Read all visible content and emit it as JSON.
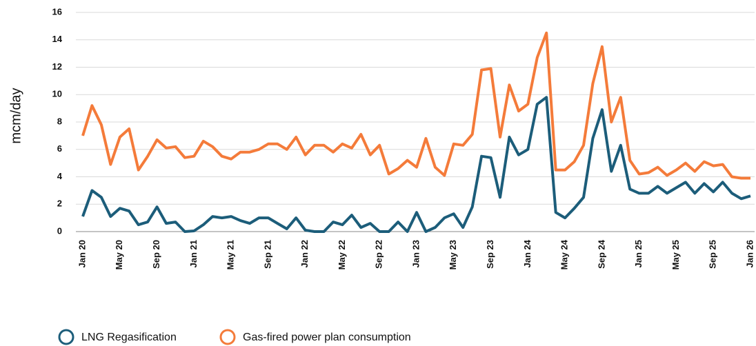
{
  "chart_data": {
    "type": "line",
    "y_label": "mcm/day",
    "categories": [
      "Jan 20",
      null,
      null,
      null,
      "May 20",
      null,
      null,
      null,
      "Sep 20",
      null,
      null,
      null,
      "Jan 21",
      null,
      null,
      null,
      "May 21",
      null,
      null,
      null,
      "Sep 21",
      null,
      null,
      null,
      "Jan 22",
      null,
      null,
      null,
      "May 22",
      null,
      null,
      null,
      "Sep 22",
      null,
      null,
      null,
      "Jan 23",
      null,
      null,
      null,
      "May 23",
      null,
      null,
      null,
      "Sep 23",
      null,
      null,
      null,
      "Jan 24",
      null,
      null,
      null,
      "May 24",
      null,
      null,
      null,
      "Sep 24",
      null,
      null,
      null,
      "Jan 25",
      null,
      null,
      null,
      "May 25",
      null,
      null,
      null,
      "Sep 25",
      null,
      null,
      null,
      "Jan 26"
    ],
    "series": [
      {
        "name": "LNG Regasification",
        "color": "#1c5d7a",
        "values": [
          1.1,
          3.0,
          2.5,
          1.1,
          1.7,
          1.5,
          0.5,
          0.7,
          1.8,
          0.6,
          0.7,
          0.0,
          0.05,
          0.5,
          1.1,
          1.0,
          1.1,
          0.8,
          0.6,
          1.0,
          1.0,
          0.6,
          0.2,
          1.0,
          0.1,
          0.0,
          0.0,
          0.7,
          0.5,
          1.2,
          0.3,
          0.6,
          0.0,
          0.0,
          0.7,
          0.0,
          1.4,
          0.0,
          0.3,
          1.0,
          1.3,
          0.3,
          1.8,
          5.5,
          5.4,
          2.5,
          6.9,
          5.6,
          6.0,
          9.3,
          9.8,
          1.4,
          1.0,
          1.7,
          2.5,
          6.8,
          8.9,
          4.4,
          6.3,
          3.1,
          2.8,
          2.8,
          3.3,
          2.8,
          3.2,
          3.6,
          2.8,
          3.5,
          2.9,
          3.6,
          2.8,
          2.4,
          2.6
        ]
      },
      {
        "name": "Gas-fired power plan consumption",
        "color": "#f47b3a",
        "values": [
          7.0,
          9.2,
          7.8,
          4.9,
          6.9,
          7.5,
          4.5,
          5.5,
          6.7,
          6.1,
          6.2,
          5.4,
          5.5,
          6.6,
          6.2,
          5.5,
          5.3,
          5.8,
          5.8,
          6.0,
          6.4,
          6.4,
          6.0,
          6.9,
          5.6,
          6.3,
          6.3,
          5.8,
          6.4,
          6.1,
          7.1,
          5.6,
          6.3,
          4.2,
          4.6,
          5.2,
          4.7,
          6.8,
          4.7,
          4.1,
          6.4,
          6.3,
          7.1,
          11.8,
          11.9,
          6.9,
          10.7,
          8.8,
          9.3,
          12.7,
          14.5,
          4.5,
          4.5,
          5.1,
          6.3,
          10.8,
          13.5,
          8.0,
          9.8,
          5.2,
          4.2,
          4.3,
          4.7,
          4.1,
          4.5,
          5.0,
          4.4,
          5.1,
          4.8,
          4.9,
          4.0,
          3.9,
          3.9
        ]
      }
    ],
    "ylim": [
      0,
      16
    ],
    "yticks": [
      0,
      2,
      4,
      6,
      8,
      10,
      12,
      14,
      16
    ],
    "grid": true,
    "legend": "bottom"
  }
}
